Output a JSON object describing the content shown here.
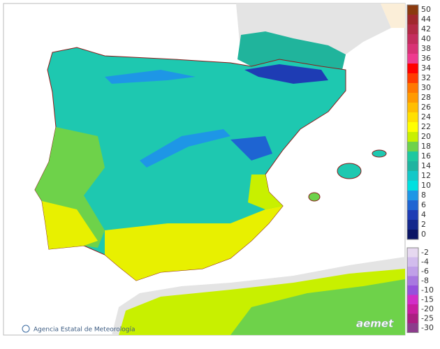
{
  "legend": {
    "positive": [
      {
        "value": 50,
        "color": "#8b3a0f"
      },
      {
        "value": 44,
        "color": "#a0282d"
      },
      {
        "value": 42,
        "color": "#b22a45"
      },
      {
        "value": 40,
        "color": "#c42d5e"
      },
      {
        "value": 38,
        "color": "#d83275"
      },
      {
        "value": 36,
        "color": "#ee3a8f"
      },
      {
        "value": 34,
        "color": "#ff0000"
      },
      {
        "value": 32,
        "color": "#ff3c00"
      },
      {
        "value": 30,
        "color": "#ff7800"
      },
      {
        "value": 28,
        "color": "#ff9a00"
      },
      {
        "value": 26,
        "color": "#ffbe00"
      },
      {
        "value": 24,
        "color": "#ffe000"
      },
      {
        "value": 22,
        "color": "#ffff00"
      },
      {
        "value": 20,
        "color": "#c8f000"
      },
      {
        "value": 18,
        "color": "#6ed24a"
      },
      {
        "value": 16,
        "color": "#1ec8a0"
      },
      {
        "value": 14,
        "color": "#1eb4a0"
      },
      {
        "value": 12,
        "color": "#14c8c8"
      },
      {
        "value": 10,
        "color": "#00e0e0"
      },
      {
        "value": 8,
        "color": "#1e96e6"
      },
      {
        "value": 6,
        "color": "#1e64d2"
      },
      {
        "value": 4,
        "color": "#1e3cb4"
      },
      {
        "value": 2,
        "color": "#14288c"
      },
      {
        "value": 0,
        "color": "#0a1464"
      }
    ],
    "negative": [
      {
        "value": -2,
        "color": "#e6d8f0"
      },
      {
        "value": -4,
        "color": "#d2bced"
      },
      {
        "value": -6,
        "color": "#c0a0e8"
      },
      {
        "value": -8,
        "color": "#a878e0"
      },
      {
        "value": -10,
        "color": "#9650dc"
      },
      {
        "value": -15,
        "color": "#d22dc8"
      },
      {
        "value": -20,
        "color": "#c81ea0"
      },
      {
        "value": -25,
        "color": "#aa1e82"
      },
      {
        "value": -30,
        "color": "#8c3c8c"
      }
    ]
  },
  "credit": "Agencia Estatal de Meteorología",
  "logo": "aemet"
}
